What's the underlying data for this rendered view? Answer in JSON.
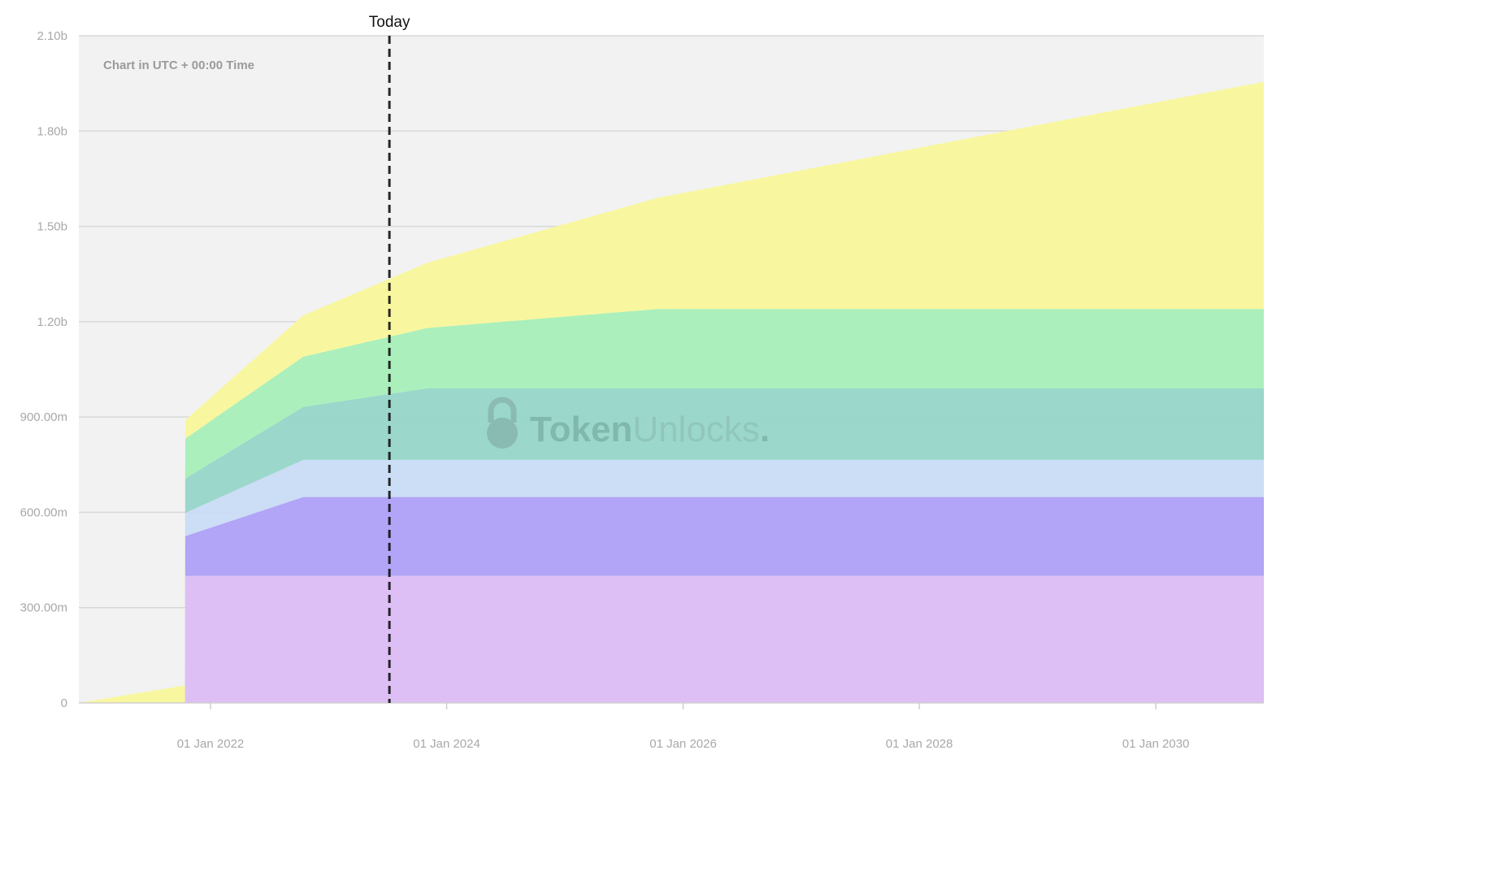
{
  "chart_data": {
    "type": "area",
    "stacked": true,
    "note": "Chart in UTC + 00:00 Time",
    "watermark": "TokenUnlocks.",
    "today_label": "Today",
    "today_date": "2023-07-08",
    "xlim": [
      "2020-11-20",
      "2030-12-01"
    ],
    "ylim": [
      0,
      2100
    ],
    "y_unit": "millions",
    "grid": true,
    "y_ticks": [
      {
        "value": 0,
        "label": "0"
      },
      {
        "value": 300,
        "label": "300.00m"
      },
      {
        "value": 600,
        "label": "600.00m"
      },
      {
        "value": 900,
        "label": "900.00m"
      },
      {
        "value": 1200,
        "label": "1.20b"
      },
      {
        "value": 1500,
        "label": "1.50b"
      },
      {
        "value": 1800,
        "label": "1.80b"
      },
      {
        "value": 2100,
        "label": "2.10b"
      }
    ],
    "x_ticks": [
      {
        "date": "2022-01-01",
        "label": "01 Jan 2022"
      },
      {
        "date": "2024-01-01",
        "label": "01 Jan 2024"
      },
      {
        "date": "2026-01-01",
        "label": "01 Jan 2026"
      },
      {
        "date": "2028-01-01",
        "label": "01 Jan 2028"
      },
      {
        "date": "2030-01-01",
        "label": "01 Jan 2030"
      }
    ],
    "x": [
      "2020-11-20",
      "2021-10-14",
      "2021-10-15",
      "2022-10-15",
      "2023-11-01",
      "2025-10-15",
      "2030-12-01"
    ],
    "series": [
      {
        "color": "#dbbcf5",
        "values": [
          0,
          0,
          400,
          400,
          400,
          400,
          400
        ]
      },
      {
        "color": "#ae9ff5",
        "values": [
          0,
          0,
          125,
          248,
          248,
          248,
          248
        ]
      },
      {
        "color": "#c9dbf5",
        "values": [
          0,
          0,
          73,
          117,
          117,
          117,
          117
        ]
      },
      {
        "color": "#96d5c8",
        "values": [
          0,
          0,
          108,
          167,
          225,
          225,
          225
        ]
      },
      {
        "color": "#a6efb8",
        "values": [
          0,
          0,
          126,
          158,
          190,
          250,
          250
        ]
      },
      {
        "color": "#f8f79a",
        "values": [
          0,
          55,
          58,
          130,
          205,
          350,
          715
        ]
      }
    ],
    "colors": {
      "plot_background": "#f2f2f2",
      "grid": "#d8d8d8",
      "today_line": "#111111"
    }
  }
}
